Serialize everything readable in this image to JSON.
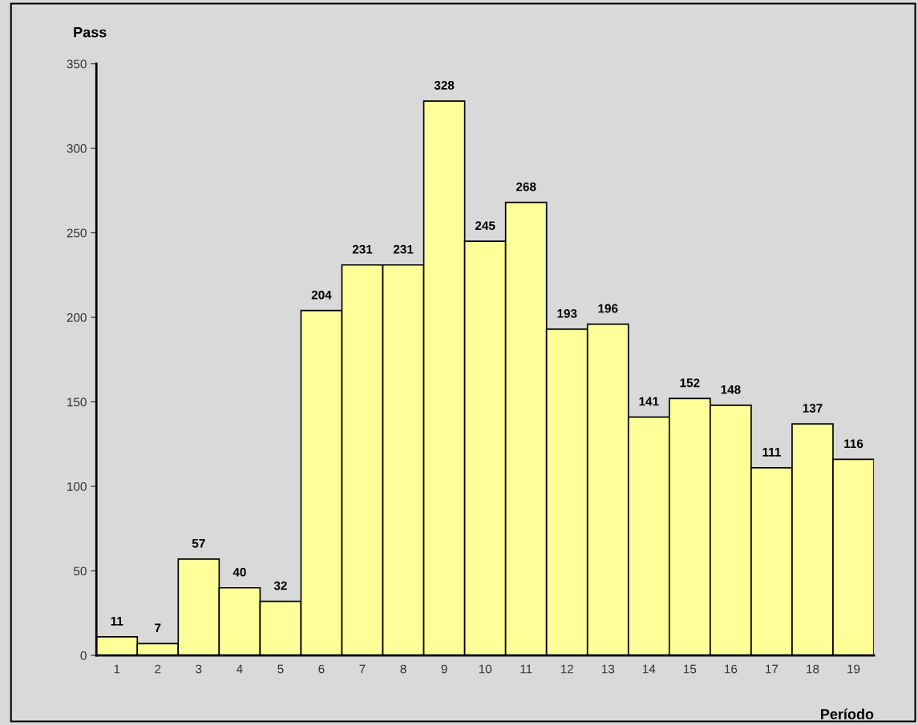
{
  "chart_data": {
    "type": "bar",
    "xlabel": "Período",
    "ylabel": "Pass",
    "categories": [
      "1",
      "2",
      "3",
      "4",
      "5",
      "6",
      "7",
      "8",
      "9",
      "10",
      "11",
      "12",
      "13",
      "14",
      "15",
      "16",
      "17",
      "18",
      "19"
    ],
    "values": [
      11,
      7,
      57,
      40,
      32,
      204,
      231,
      231,
      328,
      245,
      268,
      193,
      196,
      141,
      152,
      148,
      111,
      137,
      116
    ],
    "color": "#ffff99",
    "ylim": [
      0,
      350
    ],
    "yticks": [
      0,
      50,
      100,
      150,
      200,
      250,
      300,
      350
    ],
    "data_labels": true,
    "grid": false,
    "legend": false
  }
}
